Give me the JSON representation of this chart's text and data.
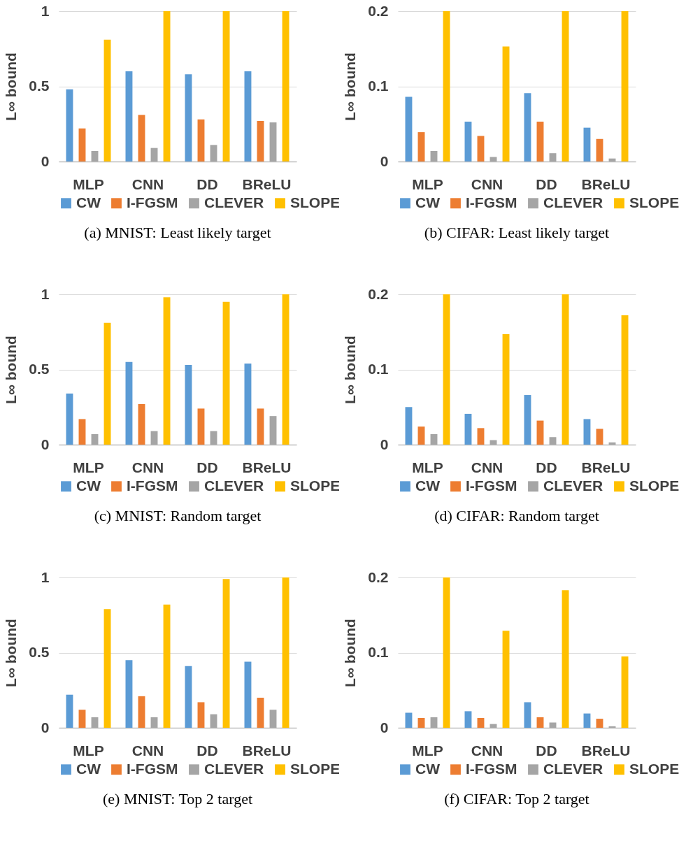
{
  "chart_data": [
    {
      "type": "bar",
      "title": "(a) MNIST: Least likely target",
      "ylabel": "L∞ bound",
      "categories": [
        "MLP",
        "CNN",
        "DD",
        "BReLU"
      ],
      "ylim": [
        0,
        1
      ],
      "yticks": [
        0,
        0.5,
        1
      ],
      "grid": "y",
      "legend": "bottom",
      "series": [
        {
          "name": "CW",
          "color": "#5b9bd5",
          "values": [
            0.48,
            0.6,
            0.58,
            0.6
          ]
        },
        {
          "name": "I-FGSM",
          "color": "#ed7d31",
          "values": [
            0.22,
            0.31,
            0.28,
            0.27
          ]
        },
        {
          "name": "CLEVER",
          "color": "#a5a5a5",
          "values": [
            0.07,
            0.09,
            0.11,
            0.26
          ]
        },
        {
          "name": "SLOPE",
          "color": "#ffc000",
          "values": [
            0.81,
            1,
            1,
            1
          ]
        }
      ]
    },
    {
      "type": "bar",
      "title": "(b) CIFAR: Least likely target",
      "ylabel": "L∞ bound",
      "categories": [
        "MLP",
        "CNN",
        "DD",
        "BReLU"
      ],
      "ylim": [
        0,
        0.2
      ],
      "yticks": [
        0,
        0.1,
        0.2
      ],
      "grid": "y",
      "legend": "bottom",
      "series": [
        {
          "name": "CW",
          "color": "#5b9bd5",
          "values": [
            0.086,
            0.053,
            0.091,
            0.045
          ]
        },
        {
          "name": "I-FGSM",
          "color": "#ed7d31",
          "values": [
            0.039,
            0.034,
            0.053,
            0.03
          ]
        },
        {
          "name": "CLEVER",
          "color": "#a5a5a5",
          "values": [
            0.014,
            0.006,
            0.011,
            0.004
          ]
        },
        {
          "name": "SLOPE",
          "color": "#ffc000",
          "values": [
            0.2,
            0.153,
            0.2,
            0.2
          ]
        }
      ]
    },
    {
      "type": "bar",
      "title": "(c) MNIST: Random target",
      "ylabel": "L∞ bound",
      "categories": [
        "MLP",
        "CNN",
        "DD",
        "BReLU"
      ],
      "ylim": [
        0,
        1
      ],
      "yticks": [
        0,
        0.5,
        1
      ],
      "grid": "y",
      "legend": "bottom",
      "series": [
        {
          "name": "CW",
          "color": "#5b9bd5",
          "values": [
            0.34,
            0.55,
            0.53,
            0.54
          ]
        },
        {
          "name": "I-FGSM",
          "color": "#ed7d31",
          "values": [
            0.17,
            0.27,
            0.24,
            0.24
          ]
        },
        {
          "name": "CLEVER",
          "color": "#a5a5a5",
          "values": [
            0.07,
            0.09,
            0.09,
            0.19
          ]
        },
        {
          "name": "SLOPE",
          "color": "#ffc000",
          "values": [
            0.81,
            0.98,
            0.95,
            1
          ]
        }
      ]
    },
    {
      "type": "bar",
      "title": "(d) CIFAR: Random target",
      "ylabel": "L∞ bound",
      "categories": [
        "MLP",
        "CNN",
        "DD",
        "BReLU"
      ],
      "ylim": [
        0,
        0.2
      ],
      "yticks": [
        0,
        0.1,
        0.2
      ],
      "grid": "y",
      "legend": "bottom",
      "series": [
        {
          "name": "CW",
          "color": "#5b9bd5",
          "values": [
            0.05,
            0.041,
            0.066,
            0.034
          ]
        },
        {
          "name": "I-FGSM",
          "color": "#ed7d31",
          "values": [
            0.024,
            0.022,
            0.032,
            0.021
          ]
        },
        {
          "name": "CLEVER",
          "color": "#a5a5a5",
          "values": [
            0.014,
            0.006,
            0.01,
            0.003
          ]
        },
        {
          "name": "SLOPE",
          "color": "#ffc000",
          "values": [
            0.2,
            0.147,
            0.2,
            0.172
          ]
        }
      ]
    },
    {
      "type": "bar",
      "title": "(e) MNIST: Top 2 target",
      "ylabel": "L∞ bound",
      "categories": [
        "MLP",
        "CNN",
        "DD",
        "BReLU"
      ],
      "ylim": [
        0,
        1
      ],
      "yticks": [
        0,
        0.5,
        1
      ],
      "grid": "y",
      "legend": "bottom",
      "series": [
        {
          "name": "CW",
          "color": "#5b9bd5",
          "values": [
            0.22,
            0.45,
            0.41,
            0.44
          ]
        },
        {
          "name": "I-FGSM",
          "color": "#ed7d31",
          "values": [
            0.12,
            0.21,
            0.17,
            0.2
          ]
        },
        {
          "name": "CLEVER",
          "color": "#a5a5a5",
          "values": [
            0.07,
            0.07,
            0.09,
            0.12
          ]
        },
        {
          "name": "SLOPE",
          "color": "#ffc000",
          "values": [
            0.79,
            0.82,
            0.99,
            1
          ]
        }
      ]
    },
    {
      "type": "bar",
      "title": "(f) CIFAR: Top 2 target",
      "ylabel": "L∞ bound",
      "categories": [
        "MLP",
        "CNN",
        "DD",
        "BReLU"
      ],
      "ylim": [
        0,
        0.2
      ],
      "yticks": [
        0,
        0.1,
        0.2
      ],
      "grid": "y",
      "legend": "bottom",
      "series": [
        {
          "name": "CW",
          "color": "#5b9bd5",
          "values": [
            0.02,
            0.022,
            0.034,
            0.019
          ]
        },
        {
          "name": "I-FGSM",
          "color": "#ed7d31",
          "values": [
            0.013,
            0.013,
            0.014,
            0.012
          ]
        },
        {
          "name": "CLEVER",
          "color": "#a5a5a5",
          "values": [
            0.014,
            0.005,
            0.007,
            0.002
          ]
        },
        {
          "name": "SLOPE",
          "color": "#ffc000",
          "values": [
            0.2,
            0.129,
            0.183,
            0.095
          ]
        }
      ]
    }
  ]
}
